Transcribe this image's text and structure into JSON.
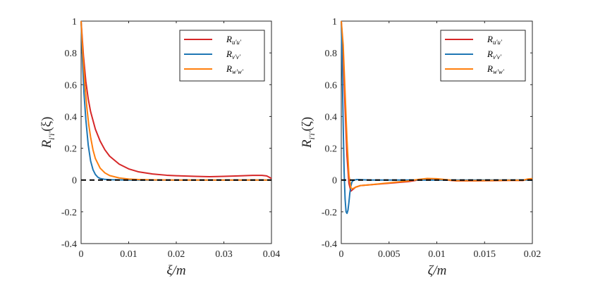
{
  "colors": {
    "uu": "#d62728",
    "vv": "#1f77b4",
    "ww": "#ff7f0e",
    "zero_line": "#000000"
  },
  "chart_data": [
    {
      "type": "line",
      "xlabel": "ξ/m",
      "ylabel": "R_{i'i'}(ξ)",
      "xlim": [
        0,
        0.04
      ],
      "ylim": [
        -0.4,
        1
      ],
      "xticks": [
        0,
        0.01,
        0.02,
        0.03,
        0.04
      ],
      "xtick_labels": [
        "0",
        "0.01",
        "0.02",
        "0.03",
        "0.04"
      ],
      "yticks": [
        -0.4,
        -0.2,
        0,
        0.2,
        0.4,
        0.6,
        0.8,
        1
      ],
      "ytick_labels": [
        "-0.4",
        "-0.2",
        "0",
        "0.2",
        "0.4",
        "0.6",
        "0.8",
        "1"
      ],
      "legend": {
        "position": "top-right",
        "entries": [
          "R_{u'u'}",
          "R_{v'v'}",
          "R_{w'w'}"
        ]
      },
      "reference_line": {
        "y": 0,
        "style": "dashed"
      },
      "series": [
        {
          "name": "R_{u'u'}",
          "color_key": "uu",
          "x": [
            0,
            0.0005,
            0.001,
            0.0015,
            0.002,
            0.003,
            0.004,
            0.005,
            0.006,
            0.008,
            0.01,
            0.012,
            0.015,
            0.018,
            0.02,
            0.024,
            0.027,
            0.03,
            0.033,
            0.036,
            0.038,
            0.039,
            0.04
          ],
          "values": [
            1,
            0.78,
            0.62,
            0.51,
            0.43,
            0.32,
            0.245,
            0.19,
            0.15,
            0.1,
            0.07,
            0.052,
            0.038,
            0.03,
            0.027,
            0.023,
            0.021,
            0.023,
            0.026,
            0.029,
            0.029,
            0.026,
            0.01
          ]
        },
        {
          "name": "R_{v'v'}",
          "color_key": "vv",
          "x": [
            0,
            0.0003,
            0.0006,
            0.001,
            0.0015,
            0.002,
            0.0025,
            0.003,
            0.0035,
            0.004,
            0.005,
            0.006,
            0.008,
            0.01,
            0.02,
            0.03,
            0.04
          ],
          "values": [
            1,
            0.75,
            0.55,
            0.38,
            0.22,
            0.12,
            0.065,
            0.035,
            0.018,
            0.01,
            0.004,
            0.002,
            0.001,
            0,
            0,
            0,
            0
          ]
        },
        {
          "name": "R_{w'w'}",
          "color_key": "ww",
          "x": [
            0,
            0.0004,
            0.0008,
            0.0012,
            0.0016,
            0.002,
            0.0025,
            0.003,
            0.004,
            0.005,
            0.006,
            0.008,
            0.01,
            0.012,
            0.015,
            0.02,
            0.03,
            0.04
          ],
          "values": [
            1,
            0.78,
            0.6,
            0.46,
            0.35,
            0.27,
            0.19,
            0.135,
            0.075,
            0.045,
            0.028,
            0.013,
            0.006,
            0.003,
            0.001,
            0,
            0,
            0
          ]
        }
      ]
    },
    {
      "type": "line",
      "xlabel": "ζ/m",
      "ylabel": "R_{i'i'}(ζ)",
      "xlim": [
        0,
        0.02
      ],
      "ylim": [
        -0.4,
        1
      ],
      "xticks": [
        0,
        0.005,
        0.01,
        0.015,
        0.02
      ],
      "xtick_labels": [
        "0",
        "0.005",
        "0.01",
        "0.015",
        "0.02"
      ],
      "yticks": [
        -0.4,
        -0.2,
        0,
        0.2,
        0.4,
        0.6,
        0.8,
        1
      ],
      "ytick_labels": [
        "-0.4",
        "-0.2",
        "0",
        "0.2",
        "0.4",
        "0.6",
        "0.8",
        "1"
      ],
      "legend": {
        "position": "top-right",
        "entries": [
          "R_{u'u'}",
          "R_{v'v'}",
          "R_{w'w'}"
        ]
      },
      "reference_line": {
        "y": 0,
        "style": "dashed"
      },
      "series": [
        {
          "name": "R_{u'u'}",
          "color_key": "uu",
          "x": [
            0,
            0.0002,
            0.0004,
            0.0006,
            0.0008,
            0.001,
            0.0012,
            0.0015,
            0.002,
            0.003,
            0.004,
            0.005,
            0.006,
            0.007,
            0.008,
            0.009,
            0.01,
            0.011,
            0.012,
            0.014,
            0.016,
            0.018,
            0.019,
            0.0195,
            0.02
          ],
          "values": [
            1,
            0.8,
            0.45,
            0.15,
            -0.02,
            -0.07,
            -0.06,
            -0.045,
            -0.035,
            -0.03,
            -0.025,
            -0.02,
            -0.015,
            -0.01,
            0,
            0.008,
            0.005,
            0,
            -0.005,
            -0.005,
            -0.004,
            -0.002,
            -0.003,
            0.004,
            0.006
          ]
        },
        {
          "name": "R_{v'v'}",
          "color_key": "vv",
          "x": [
            0,
            0.0001,
            0.0002,
            0.0003,
            0.0004,
            0.0005,
            0.0006,
            0.0007,
            0.0008,
            0.0009,
            0.001,
            0.0011,
            0.0012,
            0.0014,
            0.0016,
            0.002,
            0.003,
            0.005,
            0.01,
            0.015,
            0.02
          ],
          "values": [
            1,
            0.7,
            0.35,
            0.05,
            -0.12,
            -0.2,
            -0.21,
            -0.19,
            -0.14,
            -0.08,
            -0.04,
            -0.015,
            -0.005,
            0,
            0.003,
            0.002,
            0,
            0,
            0,
            0,
            0
          ]
        },
        {
          "name": "R_{w'w'}",
          "color_key": "ww",
          "x": [
            0,
            0.0002,
            0.0004,
            0.0006,
            0.0008,
            0.001,
            0.0012,
            0.0015,
            0.002,
            0.003,
            0.004,
            0.005,
            0.006,
            0.007,
            0.008,
            0.009,
            0.01,
            0.011,
            0.012,
            0.014,
            0.016,
            0.018,
            0.019,
            0.0195,
            0.02
          ],
          "values": [
            1,
            0.85,
            0.55,
            0.25,
            0.03,
            -0.05,
            -0.055,
            -0.045,
            -0.035,
            -0.03,
            -0.024,
            -0.018,
            -0.012,
            -0.006,
            0.003,
            0.01,
            0.008,
            0.002,
            -0.004,
            -0.004,
            -0.003,
            -0.001,
            -0.002,
            0.006,
            0.009
          ]
        }
      ]
    }
  ]
}
